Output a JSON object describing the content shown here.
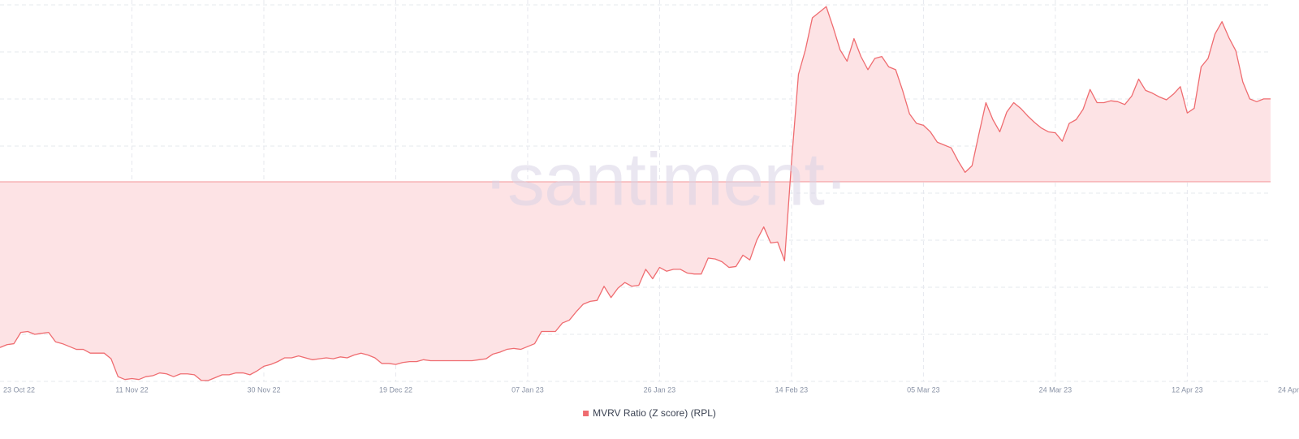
{
  "chart_data": {
    "type": "line",
    "watermark": "·santiment·",
    "categories": [
      "23 Oct 22",
      null,
      null,
      null,
      null,
      null,
      null,
      null,
      null,
      null,
      null,
      null,
      null,
      null,
      null,
      null,
      null,
      null,
      null,
      "11 Nov 22",
      null,
      null,
      null,
      null,
      null,
      null,
      null,
      null,
      null,
      null,
      null,
      null,
      null,
      null,
      null,
      null,
      null,
      null,
      "30 Nov 22",
      null,
      null,
      null,
      null,
      null,
      null,
      null,
      null,
      null,
      null,
      null,
      null,
      null,
      null,
      null,
      null,
      null,
      null,
      "19 Dec 22",
      null,
      null,
      null,
      null,
      null,
      null,
      null,
      null,
      null,
      null,
      null,
      null,
      null,
      null,
      null,
      null,
      null,
      null,
      "07 Jan 23",
      null,
      null,
      null,
      null,
      null,
      null,
      null,
      null,
      null,
      null,
      null,
      null,
      null,
      null,
      null,
      null,
      null,
      null,
      "26 Jan 23",
      null,
      null,
      null,
      null,
      null,
      null,
      null,
      null,
      null,
      null,
      null,
      null,
      null,
      null,
      null,
      null,
      null,
      null,
      "14 Feb 23",
      null,
      null,
      null,
      null,
      null,
      null,
      null,
      null,
      null,
      null,
      null,
      null,
      null,
      null,
      null,
      null,
      null,
      null,
      "05 Mar 23",
      null,
      null,
      null,
      null,
      null,
      null,
      null,
      null,
      null,
      null,
      null,
      null,
      null,
      null,
      null,
      null,
      null,
      null,
      "24 Mar 23",
      null,
      null,
      null,
      null,
      null,
      null,
      null,
      null,
      null,
      null,
      null,
      null,
      null,
      null,
      null,
      null,
      null,
      null,
      "12 Apr 23",
      null,
      null,
      null,
      null,
      null,
      null,
      null,
      null,
      null,
      null,
      null,
      "24 Apr"
    ],
    "series": [
      {
        "name": "MVRV Ratio (Z score) (RPL)",
        "color": "#ef6c70",
        "fill": "#fde3e5",
        "values": [
          -1.76,
          -1.73,
          -1.72,
          -1.6,
          -1.59,
          -1.62,
          -1.61,
          -1.6,
          -1.7,
          -1.72,
          -1.75,
          -1.78,
          -1.78,
          -1.82,
          -1.82,
          -1.82,
          -1.88,
          -2.07,
          -2.1,
          -2.09,
          -2.1,
          -2.07,
          -2.06,
          -2.03,
          -2.04,
          -2.07,
          -2.04,
          -2.04,
          -2.05,
          -2.11,
          -2.11,
          -2.08,
          -2.05,
          -2.05,
          -2.03,
          -2.03,
          -2.05,
          -2.01,
          -1.96,
          -1.94,
          -1.91,
          -1.87,
          -1.87,
          -1.85,
          -1.87,
          -1.89,
          -1.88,
          -1.87,
          -1.88,
          -1.86,
          -1.87,
          -1.84,
          -1.82,
          -1.84,
          -1.87,
          -1.93,
          -1.93,
          -1.94,
          -1.92,
          -1.91,
          -1.91,
          -1.89,
          -1.9,
          -1.9,
          -1.9,
          -1.9,
          -1.9,
          -1.9,
          -1.9,
          -1.89,
          -1.88,
          -1.83,
          -1.81,
          -1.78,
          -1.77,
          -1.78,
          -1.75,
          -1.72,
          -1.59,
          -1.59,
          -1.59,
          -1.5,
          -1.47,
          -1.38,
          -1.3,
          -1.27,
          -1.26,
          -1.11,
          -1.23,
          -1.13,
          -1.07,
          -1.11,
          -1.1,
          -0.93,
          -1.03,
          -0.91,
          -0.95,
          -0.93,
          -0.93,
          -0.97,
          -0.98,
          -0.98,
          -0.81,
          -0.82,
          -0.85,
          -0.91,
          -0.9,
          -0.78,
          -0.83,
          -0.62,
          -0.48,
          -0.65,
          -0.64,
          -0.84,
          0.21,
          1.14,
          1.4,
          1.74,
          1.8,
          1.86,
          1.64,
          1.4,
          1.28,
          1.52,
          1.33,
          1.19,
          1.31,
          1.33,
          1.22,
          1.19,
          0.97,
          0.72,
          0.62,
          0.6,
          0.53,
          0.42,
          0.39,
          0.36,
          0.22,
          0.1,
          0.17,
          0.51,
          0.84,
          0.66,
          0.53,
          0.74,
          0.84,
          0.78,
          0.7,
          0.63,
          0.57,
          0.53,
          0.52,
          0.43,
          0.62,
          0.66,
          0.77,
          0.98,
          0.84,
          0.84,
          0.86,
          0.85,
          0.82,
          0.91,
          1.09,
          0.97,
          0.94,
          0.9,
          0.87,
          0.93,
          1.01,
          0.73,
          0.78,
          1.22,
          1.31,
          1.57,
          1.7,
          1.53,
          1.39,
          1.06,
          0.88,
          0.85,
          0.88,
          0.88
        ]
      }
    ],
    "ylim": [
      -2.12,
      1.93
    ],
    "grid": true,
    "zero_line": true,
    "legend": "bottom"
  }
}
